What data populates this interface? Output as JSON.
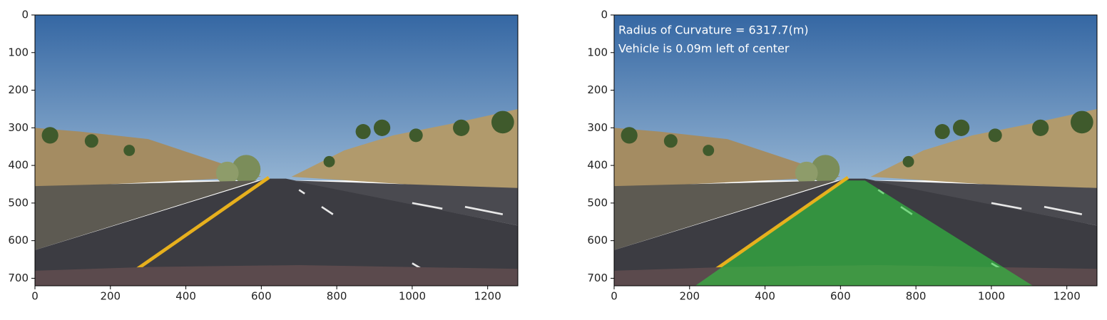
{
  "chart_data": [
    {
      "type": "image",
      "xlim": [
        0,
        1280
      ],
      "ylim": [
        720,
        0
      ],
      "xticks": [
        0,
        200,
        400,
        600,
        800,
        1000,
        1200
      ],
      "yticks": [
        0,
        100,
        200,
        300,
        400,
        500,
        600,
        700
      ]
    },
    {
      "type": "image",
      "xlim": [
        0,
        1280
      ],
      "ylim": [
        720,
        0
      ],
      "xticks": [
        0,
        200,
        400,
        600,
        800,
        1000,
        1200
      ],
      "yticks": [
        0,
        100,
        200,
        300,
        400,
        500,
        600,
        700
      ],
      "annotations": [
        "Radius of Curvature = 6317.7(m)",
        "Vehicle is 0.09m left of center"
      ]
    }
  ]
}
